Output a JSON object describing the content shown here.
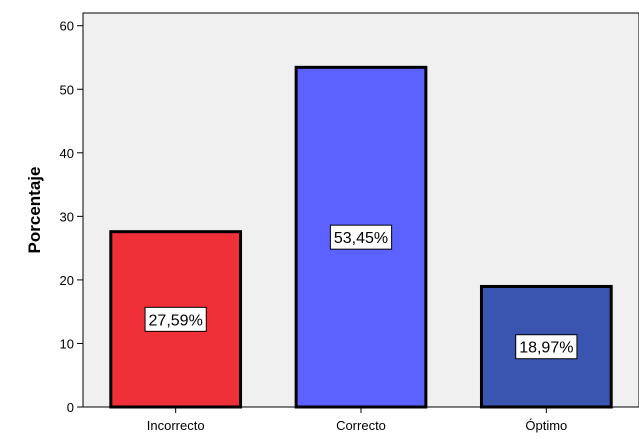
{
  "chart_data": {
    "type": "bar",
    "categories": [
      "Incorrecto",
      "Correcto",
      "Óptimo"
    ],
    "values": [
      27.59,
      53.45,
      18.97
    ],
    "value_labels": [
      "27,59%",
      "53,45%",
      "18,97%"
    ],
    "colors": [
      "#ef3038",
      "#5b62ff",
      "#3a55b0"
    ],
    "plot_background": "#f0f0f0",
    "title": "",
    "xlabel": "",
    "ylabel": "Porcentaje",
    "ylim": [
      0,
      62
    ],
    "yticks": [
      0,
      10,
      20,
      30,
      40,
      50,
      60
    ],
    "grid": false,
    "legend": "none"
  }
}
